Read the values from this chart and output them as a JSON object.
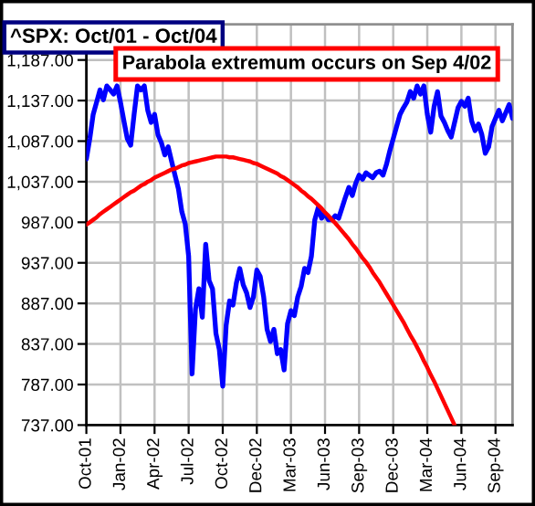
{
  "chart_data": {
    "type": "line",
    "title": "^SPX: Oct/01 - Oct/04",
    "annotations": [
      "Parabola extremum occurs on Sep 4/02"
    ],
    "categories": [
      "Oct-01",
      null,
      null,
      null,
      null,
      null,
      null,
      null,
      null,
      null,
      "Jan-02",
      null,
      null,
      null,
      null,
      null,
      null,
      null,
      null,
      null,
      "Apr-02",
      null,
      null,
      null,
      null,
      null,
      null,
      null,
      null,
      null,
      "Jul-02",
      null,
      null,
      null,
      null,
      null,
      null,
      null,
      null,
      null,
      "Oct-02",
      null,
      null,
      null,
      null,
      null,
      null,
      null,
      null,
      null,
      "Dec-02",
      null,
      null,
      null,
      null,
      null,
      null,
      null,
      null,
      null,
      "Mar-03",
      null,
      null,
      null,
      null,
      null,
      null,
      null,
      null,
      null,
      "Jun-03",
      null,
      null,
      null,
      null,
      null,
      null,
      null,
      null,
      null,
      "Sep-03",
      null,
      null,
      null,
      null,
      null,
      null,
      null,
      null,
      null,
      "Dec-03",
      null,
      null,
      null,
      null,
      null,
      null,
      null,
      null,
      null,
      "Mar-04",
      null,
      null,
      null,
      null,
      null,
      null,
      null,
      null,
      null,
      "Jun-04",
      null,
      null,
      null,
      null,
      null,
      null,
      null,
      null,
      null,
      "Sep-04",
      null,
      null,
      null,
      null,
      null
    ],
    "ylim": [
      737,
      1231
    ],
    "yticks": [
      {
        "value": 737,
        "label": "737.00"
      },
      {
        "value": 787,
        "label": "787.00"
      },
      {
        "value": 837,
        "label": "837.00"
      },
      {
        "value": 887,
        "label": "887.00"
      },
      {
        "value": 937,
        "label": "937.00"
      },
      {
        "value": 987,
        "label": "987.00"
      },
      {
        "value": 1037,
        "label": "1,037.00"
      },
      {
        "value": 1087,
        "label": "1,087.00"
      },
      {
        "value": 1137,
        "label": "1,137.00"
      },
      {
        "value": 1187,
        "label": "1,187.00"
      }
    ],
    "grid": true,
    "marker": "none",
    "line_style": "solid",
    "series": [
      {
        "color": "#0000ff",
        "values": [
          1065,
          1090,
          1120,
          1135,
          1150,
          1138,
          1155,
          1150,
          1145,
          1155,
          1135,
          1112,
          1090,
          1082,
          1120,
          1155,
          1150,
          1155,
          1125,
          1110,
          1120,
          1095,
          1085,
          1070,
          1080,
          1062,
          1045,
          1028,
          1000,
          985,
          945,
          800,
          880,
          905,
          870,
          960,
          915,
          905,
          850,
          830,
          785,
          860,
          890,
          885,
          912,
          930,
          910,
          900,
          882,
          895,
          928,
          920,
          895,
          855,
          840,
          855,
          825,
          830,
          805,
          862,
          878,
          872,
          895,
          908,
          930,
          925,
          945,
          990,
          1005,
          992,
          998,
          990,
          990,
          995,
          992,
          1005,
          1018,
          1030,
          1020,
          1035,
          1045,
          1040,
          1048,
          1045,
          1042,
          1048,
          1050,
          1045,
          1058,
          1075,
          1090,
          1105,
          1120,
          1128,
          1135,
          1148,
          1140,
          1155,
          1145,
          1155,
          1120,
          1098,
          1130,
          1148,
          1118,
          1110,
          1100,
          1092,
          1110,
          1128,
          1136,
          1130,
          1140,
          1112,
          1100,
          1108,
          1095,
          1072,
          1080,
          1105,
          1115,
          1125,
          1112,
          1122,
          1132,
          1115
        ]
      },
      {
        "color": "#ff0000",
        "values": [
          984,
          987,
          990,
          993,
          997,
          1000,
          1003,
          1006,
          1009,
          1012,
          1015,
          1018,
          1021,
          1024,
          1026,
          1029,
          1032,
          1034,
          1037,
          1039,
          1042,
          1044,
          1046,
          1048,
          1050,
          1052,
          1053,
          1055,
          1057,
          1058,
          1060,
          1061,
          1062,
          1063,
          1064,
          1065,
          1066,
          1067,
          1068,
          1068,
          1068,
          1068,
          1067,
          1067,
          1066,
          1065,
          1064,
          1063,
          1062,
          1060,
          1059,
          1057,
          1055,
          1053,
          1051,
          1049,
          1047,
          1044,
          1042,
          1039,
          1036,
          1033,
          1030,
          1026,
          1023,
          1019,
          1016,
          1012,
          1008,
          1004,
          999,
          995,
          990,
          986,
          981,
          976,
          971,
          966,
          960,
          955,
          949,
          943,
          938,
          932,
          925,
          919,
          913,
          906,
          899,
          892,
          885,
          878,
          871,
          864,
          856,
          848,
          841,
          833,
          825,
          816,
          808,
          799,
          791,
          782,
          773,
          764,
          755,
          746,
          737,
          null,
          null,
          null,
          null,
          null,
          null,
          null,
          null,
          null,
          null,
          null,
          null,
          null,
          null,
          null,
          null,
          null
        ]
      }
    ]
  }
}
